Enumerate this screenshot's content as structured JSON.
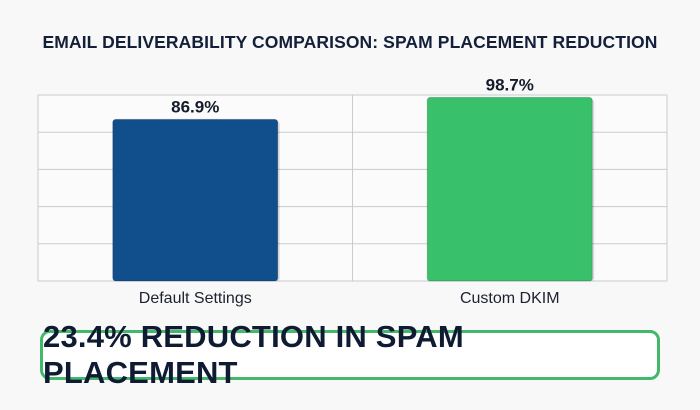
{
  "chart_data": {
    "type": "bar",
    "title": "EMAIL DELIVERABILITY COMPARISON: SPAM PLACEMENT REDUCTION",
    "categories": [
      "Default Settings",
      "Custom DKIM"
    ],
    "values": [
      86.9,
      98.7
    ],
    "value_labels": [
      "86.9%",
      "98.7%"
    ],
    "colors": [
      "#114e8c",
      "#38c06a"
    ],
    "ylim": [
      0,
      100
    ],
    "grid": true,
    "xlabel": "",
    "ylabel": ""
  },
  "callout": {
    "text": "23.4% REDUCTION IN SPAM PLACEMENT",
    "border_color": "#44b86a"
  }
}
